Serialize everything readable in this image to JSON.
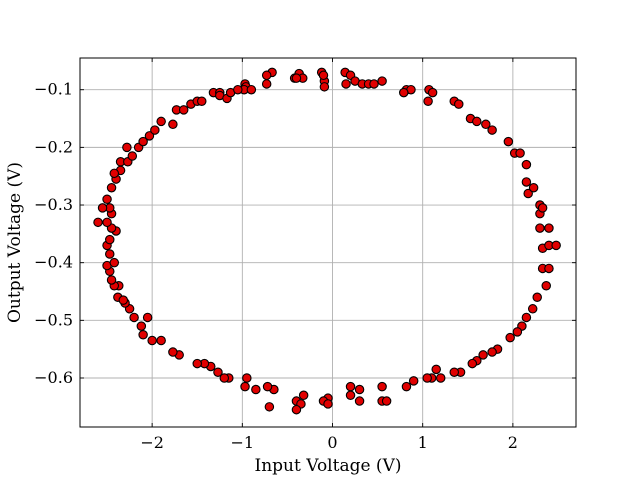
{
  "chart_data": {
    "type": "scatter",
    "title": "",
    "xlabel": "Input Voltage (V)",
    "ylabel": "Output Voltage (V)",
    "xlim": [
      -2.8,
      2.7
    ],
    "ylim": [
      -0.685,
      -0.045
    ],
    "xticks": [
      -2,
      -1,
      0,
      1,
      2
    ],
    "xtick_labels": [
      "−2",
      "−1",
      "0",
      "1",
      "2"
    ],
    "yticks": [
      -0.1,
      -0.2,
      -0.3,
      -0.4,
      -0.5,
      -0.6
    ],
    "ytick_labels": [
      "−0.1",
      "−0.2",
      "−0.3",
      "−0.4",
      "−0.5",
      "−0.6"
    ],
    "grid": true,
    "legend": false,
    "marker_color": "#e00000",
    "marker_edge_color": "#000000",
    "series": [
      {
        "x": [
          -0.67,
          -0.73,
          -0.42,
          -0.37,
          -0.33,
          -0.12,
          -0.09,
          -0.09,
          0.14,
          0.2,
          0.15,
          0.25,
          0.33,
          0.4,
          0.46,
          0.55,
          -0.97,
          -0.96,
          -0.98,
          -0.9,
          -0.73,
          -0.4,
          -0.1,
          0.82,
          0.87,
          0.79,
          1.07,
          1.11,
          1.06,
          1.35,
          1.4,
          1.53,
          1.6,
          1.7,
          1.77,
          1.95,
          2.02,
          2.08,
          2.15,
          2.15,
          2.17,
          2.23,
          2.3,
          2.3,
          2.3,
          2.33,
          2.4,
          2.33,
          2.4,
          2.48,
          2.33,
          2.4,
          2.37,
          2.27,
          2.22,
          2.15,
          2.1,
          2.05,
          1.97,
          1.83,
          1.77,
          1.67,
          1.6,
          1.55,
          1.42,
          1.35,
          1.1,
          1.2,
          1.15,
          1.05,
          0.9,
          0.82,
          0.55,
          0.6,
          0.55,
          0.3,
          0.2,
          0.3,
          0.2,
          -0.05,
          -0.1,
          -0.05,
          -0.4,
          -0.35,
          -0.4,
          -0.32,
          -0.65,
          -0.72,
          -0.95,
          -0.97,
          -0.85,
          -0.7,
          -1.15,
          -1.2,
          -1.27,
          -1.35,
          -1.42,
          -1.5,
          -1.7,
          -1.77,
          -1.9,
          -2.0,
          -2.1,
          -2.12,
          -2.05,
          -2.2,
          -2.25,
          -2.3,
          -2.38,
          -2.32,
          -2.37,
          -2.42,
          -2.45,
          -2.47,
          -2.5,
          -2.42,
          -2.47,
          -2.5,
          -2.47,
          -2.4,
          -2.45,
          -2.5,
          -2.45,
          -2.47,
          -2.55,
          -2.6,
          -2.5,
          -2.45,
          -2.4,
          -2.35,
          -2.42,
          -2.35,
          -2.27,
          -2.22,
          -2.28,
          -2.15,
          -2.1,
          -2.03,
          -1.97,
          -1.9,
          -1.77,
          -1.73,
          -1.65,
          -1.57,
          -1.5,
          -1.45,
          -1.32,
          -1.25,
          -1.25,
          -1.17,
          -1.13,
          -1.05
        ],
        "y": [
          -0.07,
          -0.075,
          -0.08,
          -0.072,
          -0.08,
          -0.07,
          -0.085,
          -0.095,
          -0.07,
          -0.075,
          -0.09,
          -0.085,
          -0.09,
          -0.09,
          -0.09,
          -0.085,
          -0.09,
          -0.095,
          -0.1,
          -0.1,
          -0.09,
          -0.08,
          -0.075,
          -0.1,
          -0.1,
          -0.105,
          -0.1,
          -0.105,
          -0.12,
          -0.12,
          -0.125,
          -0.15,
          -0.155,
          -0.16,
          -0.17,
          -0.19,
          -0.21,
          -0.21,
          -0.23,
          -0.26,
          -0.28,
          -0.27,
          -0.3,
          -0.315,
          -0.34,
          -0.305,
          -0.34,
          -0.375,
          -0.37,
          -0.37,
          -0.41,
          -0.41,
          -0.44,
          -0.46,
          -0.48,
          -0.495,
          -0.51,
          -0.52,
          -0.53,
          -0.55,
          -0.555,
          -0.56,
          -0.57,
          -0.575,
          -0.59,
          -0.59,
          -0.6,
          -0.6,
          -0.585,
          -0.6,
          -0.605,
          -0.615,
          -0.64,
          -0.64,
          -0.615,
          -0.62,
          -0.63,
          -0.64,
          -0.615,
          -0.635,
          -0.64,
          -0.645,
          -0.64,
          -0.645,
          -0.655,
          -0.63,
          -0.62,
          -0.615,
          -0.6,
          -0.615,
          -0.62,
          -0.65,
          -0.6,
          -0.6,
          -0.59,
          -0.58,
          -0.575,
          -0.575,
          -0.56,
          -0.555,
          -0.535,
          -0.535,
          -0.525,
          -0.51,
          -0.495,
          -0.495,
          -0.48,
          -0.47,
          -0.46,
          -0.465,
          -0.44,
          -0.44,
          -0.43,
          -0.415,
          -0.405,
          -0.4,
          -0.385,
          -0.37,
          -0.36,
          -0.345,
          -0.34,
          -0.33,
          -0.315,
          -0.305,
          -0.305,
          -0.33,
          -0.29,
          -0.27,
          -0.255,
          -0.24,
          -0.245,
          -0.225,
          -0.225,
          -0.215,
          -0.2,
          -0.2,
          -0.19,
          -0.18,
          -0.17,
          -0.155,
          -0.16,
          -0.135,
          -0.135,
          -0.125,
          -0.12,
          -0.12,
          -0.105,
          -0.105,
          -0.11,
          -0.115,
          -0.105,
          -0.1
        ]
      }
    ]
  }
}
